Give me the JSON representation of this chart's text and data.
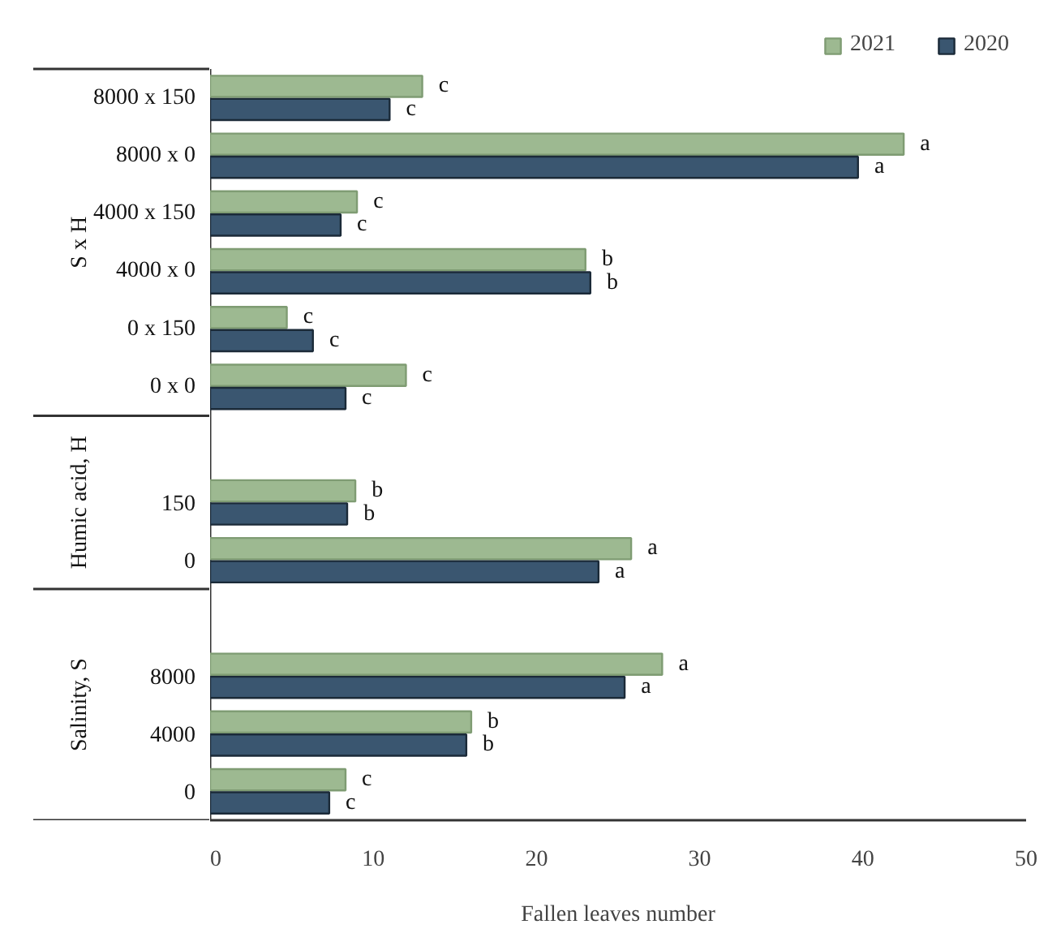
{
  "chart_data": {
    "type": "bar",
    "orientation": "horizontal",
    "xlabel": "Fallen leaves number",
    "categories": [
      "8000 x 150",
      "8000 x 0",
      "4000 x 150",
      "4000 x 0",
      "0 x 150",
      "0 x 0",
      null,
      "150",
      "0",
      null,
      "8000",
      "4000",
      "0"
    ],
    "annotations": [
      "S x H",
      "Humic acid, H",
      "Salinity, S"
    ],
    "series": [
      {
        "name": "2021",
        "color": "#9db991",
        "values": [
          13.0,
          42.5,
          9.0,
          23.0,
          4.7,
          12.0,
          null,
          8.9,
          25.8,
          null,
          27.7,
          16.0,
          8.3
        ],
        "value_labels": [
          "c",
          "a",
          "c",
          "b",
          "c",
          "c",
          null,
          "b",
          "a",
          null,
          "a",
          "b",
          "c"
        ]
      },
      {
        "name": "2020",
        "color": "#3a5670",
        "values": [
          11.0,
          39.7,
          8.0,
          23.3,
          6.3,
          8.3,
          null,
          8.4,
          23.8,
          null,
          25.4,
          15.7,
          7.3
        ],
        "value_labels": [
          "c",
          "a",
          "c",
          "b",
          "c",
          "c",
          null,
          "b",
          "a",
          null,
          "a",
          "b",
          "c"
        ]
      }
    ],
    "xlim": [
      0,
      50
    ],
    "xticks": [
      0,
      10,
      20,
      30,
      40,
      50
    ],
    "grid": false,
    "legend": "top right"
  }
}
